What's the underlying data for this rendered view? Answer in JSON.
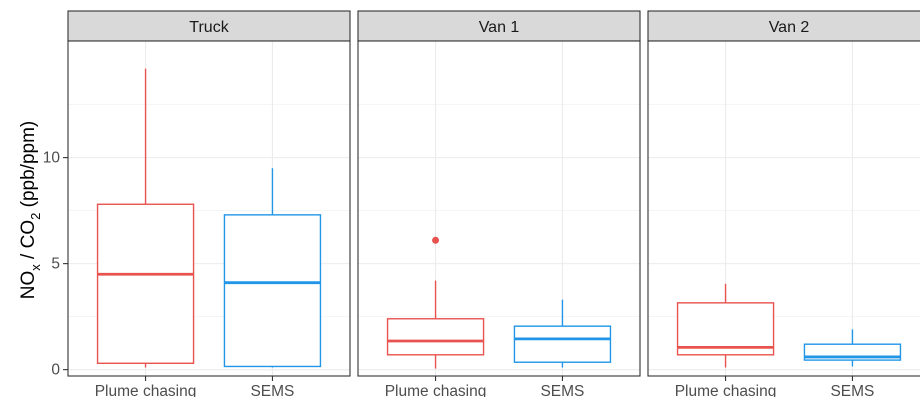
{
  "chart_data": {
    "type": "box",
    "ylabel": {
      "prefix": "NO",
      "sub1": "x",
      "middle": " / CO",
      "sub2": "2",
      "suffix": " (ppb/ppm)"
    },
    "ylim": [
      -0.3,
      15.5
    ],
    "yticks": [
      0,
      5,
      10
    ],
    "ytick_labels": [
      "0",
      "5",
      "10"
    ],
    "grid": true,
    "legend": "none",
    "categories": [
      "Plume chasing",
      "SEMS"
    ],
    "colors": {
      "Plume chasing": "#e8534f",
      "SEMS": "#2196e8"
    },
    "panels": [
      {
        "title": "Truck",
        "boxes": [
          {
            "category": "Plume chasing",
            "min": 0.1,
            "q1": 0.3,
            "median": 4.5,
            "q3": 7.8,
            "max": 14.2,
            "outliers": []
          },
          {
            "category": "SEMS",
            "min": 0.1,
            "q1": 0.15,
            "median": 4.1,
            "q3": 7.3,
            "max": 9.5,
            "outliers": []
          }
        ]
      },
      {
        "title": "Van 1",
        "boxes": [
          {
            "category": "Plume chasing",
            "min": 0.05,
            "q1": 0.7,
            "median": 1.35,
            "q3": 2.4,
            "max": 4.2,
            "outliers": [
              6.1
            ]
          },
          {
            "category": "SEMS",
            "min": 0.1,
            "q1": 0.35,
            "median": 1.45,
            "q3": 2.05,
            "max": 3.3,
            "outliers": []
          }
        ]
      },
      {
        "title": "Van 2",
        "boxes": [
          {
            "category": "Plume chasing",
            "min": 0.1,
            "q1": 0.7,
            "median": 1.05,
            "q3": 3.15,
            "max": 4.05,
            "outliers": []
          },
          {
            "category": "SEMS",
            "min": 0.15,
            "q1": 0.45,
            "median": 0.6,
            "q3": 1.2,
            "max": 1.9,
            "outliers": []
          }
        ]
      }
    ]
  }
}
